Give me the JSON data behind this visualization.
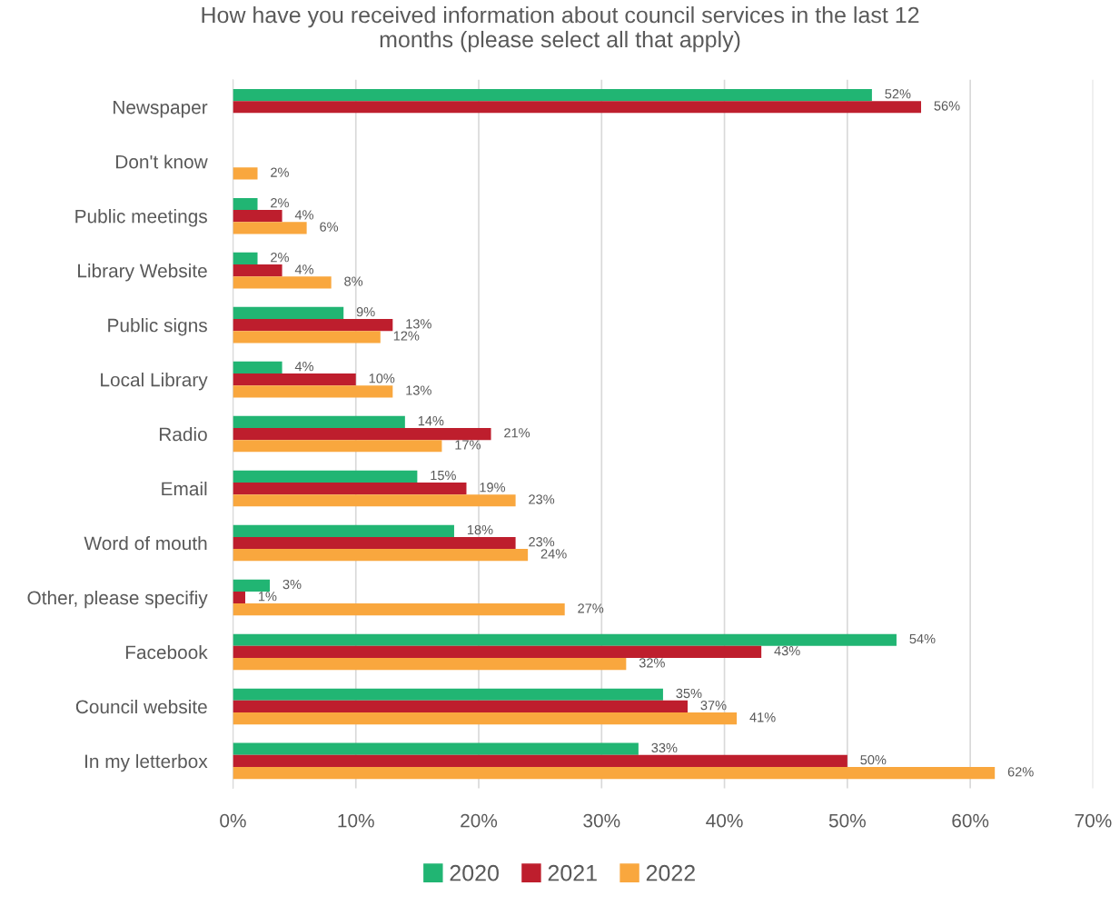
{
  "chart_data": {
    "type": "bar",
    "orientation": "horizontal",
    "title": "How have you received information about council services in the last 12\nmonths (please select all that apply)",
    "categories": [
      "Newspaper",
      "Don't know",
      "Public meetings",
      "Library Website",
      "Public signs",
      "Local Library",
      "Radio",
      "Email",
      "Word of mouth",
      "Other, please specifiy",
      "Facebook",
      "Council website",
      "In my letterbox"
    ],
    "series": [
      {
        "name": "2020",
        "color": "#21b573",
        "values": [
          52,
          null,
          2,
          2,
          9,
          4,
          14,
          15,
          18,
          3,
          54,
          35,
          33
        ],
        "value_labels": [
          "52%",
          null,
          "2%",
          "2%",
          "9%",
          "4%",
          "14%",
          "15%",
          "18%",
          "3%",
          "54%",
          "35%",
          "33%"
        ]
      },
      {
        "name": "2021",
        "color": "#be1e2d",
        "values": [
          56,
          null,
          4,
          4,
          13,
          10,
          21,
          19,
          23,
          1,
          43,
          37,
          50
        ],
        "value_labels": [
          "56%",
          null,
          "4%",
          "4%",
          "13%",
          "10%",
          "21%",
          "19%",
          "23%",
          "1%",
          "43%",
          "37%",
          "50%"
        ]
      },
      {
        "name": "2022",
        "color": "#f9a73e",
        "values": [
          null,
          2,
          6,
          8,
          12,
          13,
          17,
          23,
          24,
          27,
          32,
          41,
          62
        ],
        "value_labels": [
          null,
          "2%",
          "6%",
          "8%",
          "12%",
          "13%",
          "17%",
          "23%",
          "24%",
          "27%",
          "32%",
          "41%",
          "62%"
        ]
      }
    ],
    "xlim": [
      0,
      70
    ],
    "xticks": [
      {
        "value": 0,
        "label": "0%"
      },
      {
        "value": 10,
        "label": "10%"
      },
      {
        "value": 20,
        "label": "20%"
      },
      {
        "value": 30,
        "label": "30%"
      },
      {
        "value": 40,
        "label": "40%"
      },
      {
        "value": 50,
        "label": "50%"
      },
      {
        "value": 60,
        "label": "60%"
      },
      {
        "value": 70,
        "label": "70%"
      }
    ],
    "grid": "x",
    "legend": "bottom"
  }
}
